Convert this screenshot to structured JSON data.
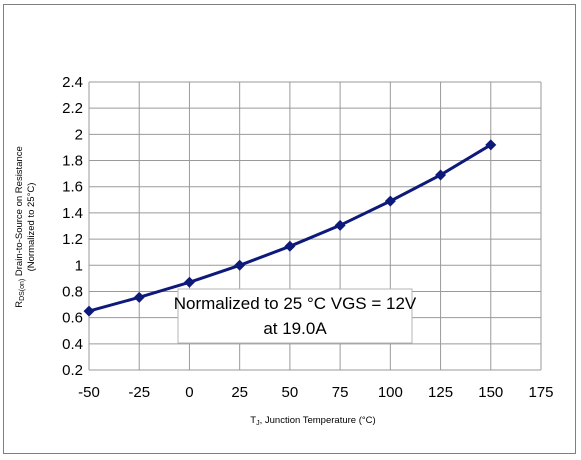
{
  "chart_data": {
    "type": "line",
    "xlabel_main": "T",
    "xlabel_sub": "J",
    "xlabel_rest": ", Junction Temperature (°C)",
    "ylabel_main": "R",
    "ylabel_sub": "DS(on)",
    "ylabel_rest": " Drain-to-Source on Resistance",
    "ylabel_line2": "(Normalized to 25°C)",
    "annotation": [
      "Normalized to 25 °C VGS = 12V",
      "at 19.0A"
    ],
    "xlim": [
      -50,
      175
    ],
    "ylim": [
      0.2,
      2.4
    ],
    "x_ticks": [
      -50,
      -25,
      0,
      25,
      50,
      75,
      100,
      125,
      150,
      175
    ],
    "y_ticks": [
      0.2,
      0.4,
      0.6,
      0.8,
      1,
      1.2,
      1.4,
      1.6,
      1.8,
      2,
      2.2,
      2.4
    ],
    "grid": true,
    "series_color": "#0e1a7a",
    "series": [
      {
        "x": [
          -50,
          -25,
          0,
          25,
          50,
          75,
          100,
          125,
          150
        ],
        "values": [
          0.65,
          0.755,
          0.87,
          1.0,
          1.145,
          1.305,
          1.49,
          1.69,
          1.92
        ]
      }
    ]
  }
}
